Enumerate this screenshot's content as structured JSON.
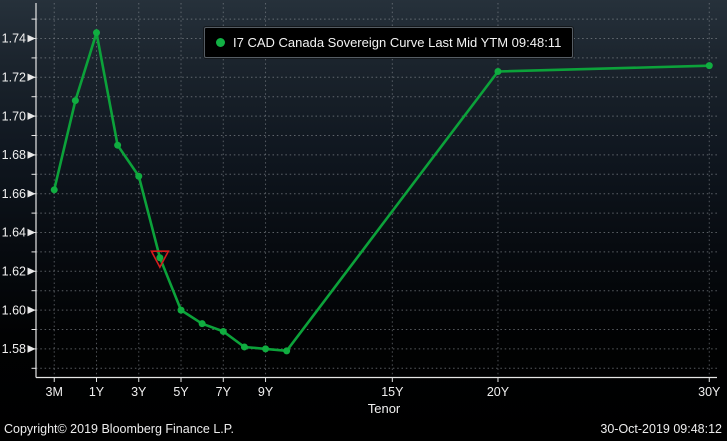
{
  "chart_data": {
    "type": "line",
    "title": "",
    "series": [
      {
        "name": "I7 CAD Canada Sovereign Curve Last Mid YTM 09:48:11",
        "color": "#0ca23a",
        "marker_color": "#10ad40",
        "x": [
          "3M",
          "6M",
          "1Y",
          "2Y",
          "3Y",
          "4Y",
          "5Y",
          "6Y",
          "7Y",
          "8Y",
          "9Y",
          "10Y",
          "20Y",
          "30Y"
        ],
        "values": [
          1.662,
          1.708,
          1.743,
          1.685,
          1.669,
          1.627,
          1.6,
          1.593,
          1.589,
          1.581,
          1.58,
          1.579,
          1.723,
          1.726
        ]
      }
    ],
    "annotation": {
      "tenor": "4Y",
      "shape": "triangle-down-outline",
      "color": "#d61d1d"
    },
    "xlabel": "Tenor",
    "x_ticks": [
      "3M",
      "1Y",
      "3Y",
      "5Y",
      "7Y",
      "9Y",
      "15Y",
      "20Y",
      "30Y"
    ],
    "y_ticks": [
      "1.74",
      "1.72",
      "1.70",
      "1.68",
      "1.66",
      "1.64",
      "1.62",
      "1.60",
      "1.58"
    ],
    "y_minor_step": 0.01,
    "ylim": [
      1.566,
      1.758
    ],
    "grid": "dotted-both",
    "legend_position": "top-center"
  },
  "legend": {
    "label": "I7 CAD Canada Sovereign Curve Last Mid YTM 09:48:11"
  },
  "axis": {
    "x_label": "Tenor"
  },
  "footer": {
    "copyright": "Copyright© 2019 Bloomberg Finance L.P.",
    "timestamp": "30-Oct-2019 09:48:12"
  },
  "colors": {
    "line_green": "#0ca23a",
    "marker_green": "#10ad40",
    "alert_red": "#d61d1d",
    "grid": "#8d9298",
    "axis_line": "#e6e6e6",
    "text": "#f0f0f0",
    "bg_top": "#26313b",
    "bg_bottom": "#000000",
    "legend_bg": "#000000"
  }
}
